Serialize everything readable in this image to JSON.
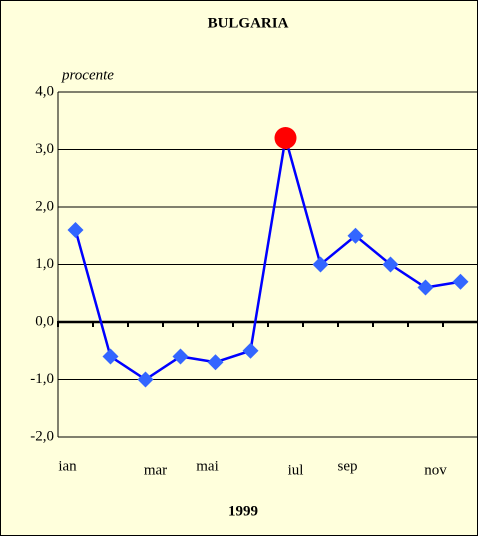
{
  "chart_data": {
    "type": "line",
    "title": "BULGARIA",
    "y_label": "procente",
    "x_label": "1999",
    "categories": [
      "ian",
      null,
      "mar",
      null,
      "mai",
      null,
      "iul",
      null,
      "sep",
      null,
      "nov",
      null
    ],
    "series": [
      {
        "name": "BULGARIA",
        "color": "#0000ff",
        "marker_color": "#3366ff",
        "values": [
          1.6,
          -0.6,
          -1.0,
          -0.6,
          -0.7,
          -0.5,
          3.2,
          1.0,
          1.5,
          1.0,
          0.6,
          0.7
        ]
      }
    ],
    "highlight": {
      "index": 6,
      "color": "#ff0000"
    },
    "ylim": [
      -2,
      4
    ],
    "yticks": [
      {
        "value": -2,
        "label": "-2,0"
      },
      {
        "value": -1,
        "label": "-1,0"
      },
      {
        "value": 0,
        "label": "0,0"
      },
      {
        "value": 1,
        "label": "1,0"
      },
      {
        "value": 2,
        "label": "2,0"
      },
      {
        "value": 3,
        "label": "3,0"
      },
      {
        "value": 4,
        "label": "4,0"
      }
    ],
    "grid": true
  }
}
